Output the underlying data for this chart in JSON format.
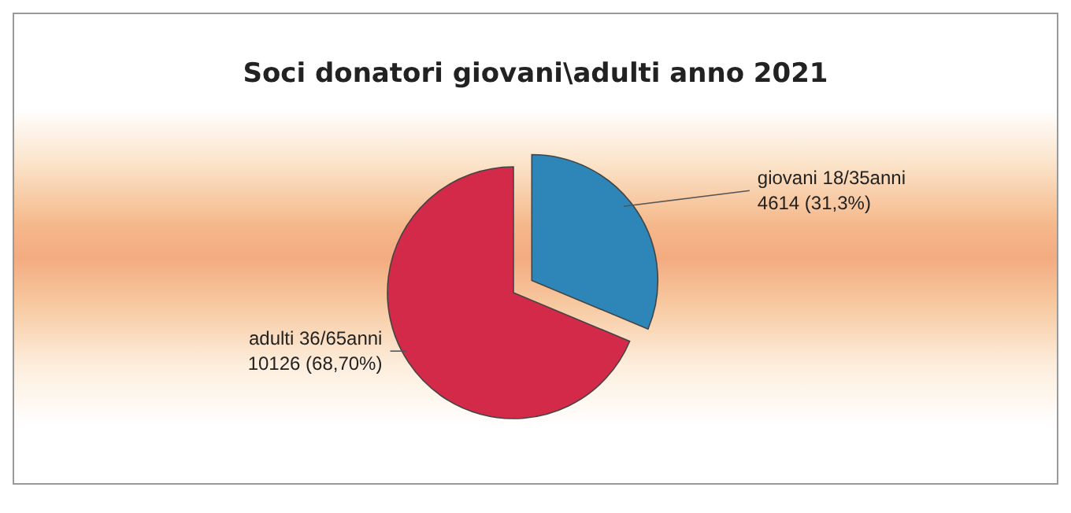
{
  "chart_data": {
    "type": "pie",
    "title": "Soci donatori giovani\\adulti  anno 2021",
    "categories": [
      "giovani 18/35anni",
      "adulti 36/65anni"
    ],
    "values": [
      4614,
      10126
    ],
    "value_labels": [
      "4614 (31,3%)",
      "10126 (68,70%)"
    ],
    "colors": [
      "#2e86b8",
      "#d42a4a"
    ]
  }
}
